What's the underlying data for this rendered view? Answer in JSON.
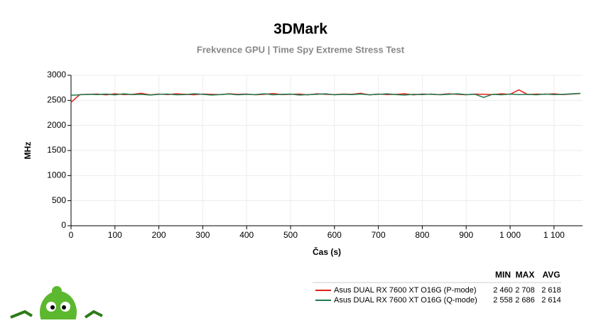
{
  "chart_data": {
    "type": "line",
    "title": "3DMark",
    "subtitle": "Frekvence GPU | Time Spy Extreme Stress Test",
    "x_label": "Čas (s)",
    "y_label": "MHz",
    "x": [
      0,
      20,
      40,
      60,
      80,
      100,
      120,
      140,
      160,
      180,
      200,
      220,
      240,
      260,
      280,
      300,
      320,
      340,
      360,
      380,
      400,
      420,
      440,
      460,
      480,
      500,
      520,
      540,
      560,
      580,
      600,
      620,
      640,
      660,
      680,
      700,
      720,
      740,
      760,
      780,
      800,
      820,
      840,
      860,
      880,
      900,
      920,
      940,
      960,
      980,
      1000,
      1020,
      1040,
      1060,
      1080,
      1100,
      1120,
      1140,
      1160
    ],
    "series": [
      {
        "name": "Asus DUAL RX 7600 XT O16G (P-mode)",
        "color": "#e0201b",
        "values": [
          2460,
          2615,
          2620,
          2625,
          2610,
          2630,
          2615,
          2620,
          2640,
          2610,
          2625,
          2615,
          2630,
          2620,
          2610,
          2625,
          2620,
          2615,
          2630,
          2620,
          2625,
          2610,
          2620,
          2635,
          2615,
          2620,
          2625,
          2610,
          2630,
          2620,
          2615,
          2625,
          2620,
          2640,
          2610,
          2625,
          2615,
          2620,
          2630,
          2610,
          2625,
          2620,
          2615,
          2630,
          2620,
          2610,
          2625,
          2620,
          2615,
          2630,
          2620,
          2708,
          2615,
          2625,
          2620,
          2630,
          2615,
          2625,
          2635
        ]
      },
      {
        "name": "Asus DUAL RX 7600 XT O16G (Q-mode)",
        "color": "#1d7a4e",
        "values": [
          2600,
          2610,
          2620,
          2615,
          2625,
          2610,
          2630,
          2615,
          2620,
          2605,
          2620,
          2625,
          2610,
          2615,
          2630,
          2620,
          2605,
          2615,
          2625,
          2610,
          2620,
          2615,
          2630,
          2610,
          2620,
          2625,
          2605,
          2615,
          2620,
          2630,
          2610,
          2620,
          2615,
          2625,
          2610,
          2620,
          2630,
          2615,
          2605,
          2620,
          2615,
          2625,
          2610,
          2620,
          2630,
          2615,
          2620,
          2558,
          2620,
          2610,
          2625,
          2615,
          2620,
          2610,
          2625,
          2615,
          2620,
          2630,
          2640
        ]
      }
    ],
    "xlim": [
      0,
      1165
    ],
    "xticks": [
      0,
      100,
      200,
      300,
      400,
      500,
      600,
      700,
      800,
      900,
      {
        "value": 1000,
        "label": "1 000"
      },
      {
        "value": 1100,
        "label": "1 100"
      }
    ],
    "ylim": [
      0,
      3000
    ],
    "yticks": [
      0,
      500,
      1000,
      1500,
      2000,
      2500,
      3000
    ],
    "grid": true,
    "summary": {
      "columns": [
        "MIN",
        "MAX",
        "AVG"
      ],
      "rows": [
        [
          "2 460",
          "2 708",
          "2 618"
        ],
        [
          "2 558",
          "2 686",
          "2 614"
        ]
      ]
    }
  }
}
